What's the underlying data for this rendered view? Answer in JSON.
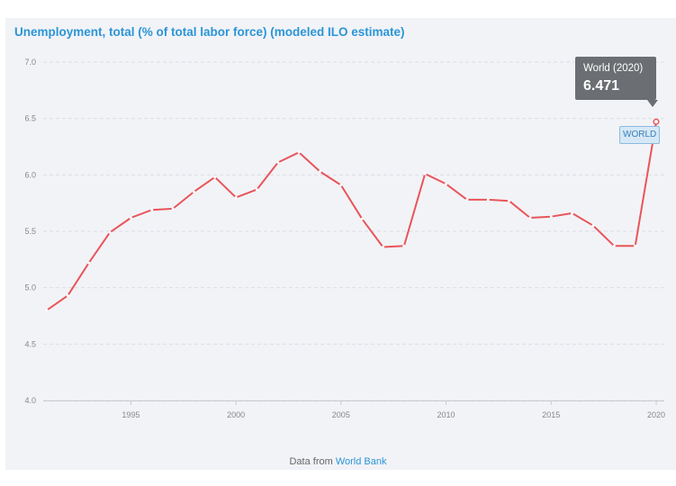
{
  "chart_data": {
    "type": "line",
    "title": "Unemployment, total (% of total labor force) (modeled ILO estimate)",
    "xlabel": "",
    "ylabel": "",
    "xlim": [
      1991,
      2020
    ],
    "ylim": [
      4.0,
      7.0
    ],
    "y_ticks": [
      "4.0",
      "4.5",
      "5.0",
      "5.5",
      "6.0",
      "6.5",
      "7.0"
    ],
    "x_ticks": [
      "1995",
      "2000",
      "2005",
      "2010",
      "2015",
      "2020"
    ],
    "grid": "horizontal dashed",
    "series": [
      {
        "name": "World",
        "color": "#e8555a",
        "x": [
          1991,
          1992,
          1993,
          1994,
          1995,
          1996,
          1997,
          1998,
          1999,
          2000,
          2001,
          2002,
          2003,
          2004,
          2005,
          2006,
          2007,
          2008,
          2009,
          2010,
          2011,
          2012,
          2013,
          2014,
          2015,
          2016,
          2017,
          2018,
          2019,
          2020
        ],
        "y": [
          4.8,
          4.93,
          5.22,
          5.49,
          5.62,
          5.69,
          5.7,
          5.85,
          5.98,
          5.8,
          5.87,
          6.11,
          6.2,
          6.03,
          5.91,
          5.61,
          5.36,
          5.37,
          6.01,
          5.92,
          5.78,
          5.78,
          5.77,
          5.62,
          5.63,
          5.66,
          5.55,
          5.37,
          5.37,
          6.471
        ]
      }
    ],
    "end_label": "WORLD"
  },
  "tooltip": {
    "label": "World (2020)",
    "value": "6.471"
  },
  "source": {
    "prefix": "Data from",
    "link_text": "World Bank"
  }
}
